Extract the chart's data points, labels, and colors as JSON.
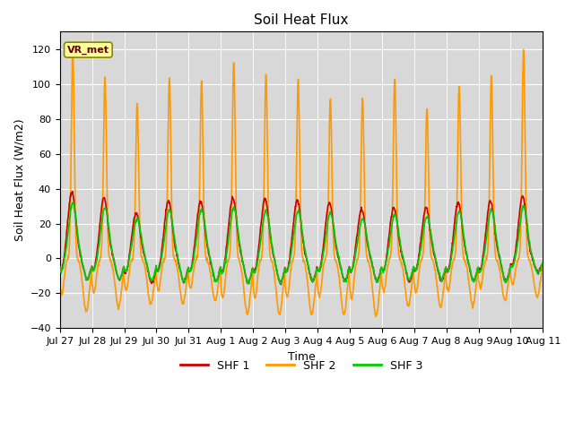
{
  "title": "Soil Heat Flux",
  "ylabel": "Soil Heat Flux (W/m2)",
  "xlabel": "Time",
  "ylim": [
    -40,
    130
  ],
  "yticks": [
    -40,
    -20,
    0,
    20,
    40,
    60,
    80,
    100,
    120
  ],
  "line_colors": {
    "SHF 1": "#cc0000",
    "SHF 2": "#ff9900",
    "SHF 3": "#00cc00"
  },
  "background_color": "#d8d8d8",
  "annotation_text": "VR_met",
  "n_days": 15,
  "points_per_day": 96,
  "title_fontsize": 11,
  "axis_fontsize": 9,
  "tick_fontsize": 8,
  "day_labels": [
    "Jul 27",
    "Jul 28",
    "Jul 29",
    "Jul 30",
    "Jul 31",
    "Aug 1",
    "Aug 2",
    "Aug 3",
    "Aug 4",
    "Aug 5",
    "Aug 6",
    "Aug 7",
    "Aug 8",
    "Aug 9",
    "Aug 10",
    "Aug 11"
  ],
  "shf2_peaks": [
    120,
    104,
    89,
    104,
    102,
    113,
    106,
    103,
    92,
    92,
    103,
    86,
    99,
    105,
    120
  ],
  "shf2_mins": [
    -30,
    -28,
    -26,
    -26,
    -24,
    -32,
    -32,
    -32,
    -32,
    -33,
    -27,
    -28,
    -27,
    -24,
    -22
  ],
  "shf1_peaks": [
    38,
    35,
    26,
    33,
    33,
    35,
    34,
    33,
    32,
    28,
    29,
    29,
    32,
    33,
    36
  ],
  "shf1_mins": [
    -12,
    -12,
    -14,
    -13,
    -13,
    -14,
    -14,
    -13,
    -13,
    -13,
    -13,
    -13,
    -13,
    -13,
    -8
  ],
  "shf3_peaks": [
    32,
    29,
    23,
    28,
    28,
    29,
    27,
    27,
    26,
    23,
    25,
    24,
    27,
    28,
    30
  ],
  "shf3_mins": [
    -12,
    -12,
    -13,
    -13,
    -13,
    -14,
    -14,
    -13,
    -13,
    -13,
    -12,
    -12,
    -13,
    -13,
    -8
  ]
}
